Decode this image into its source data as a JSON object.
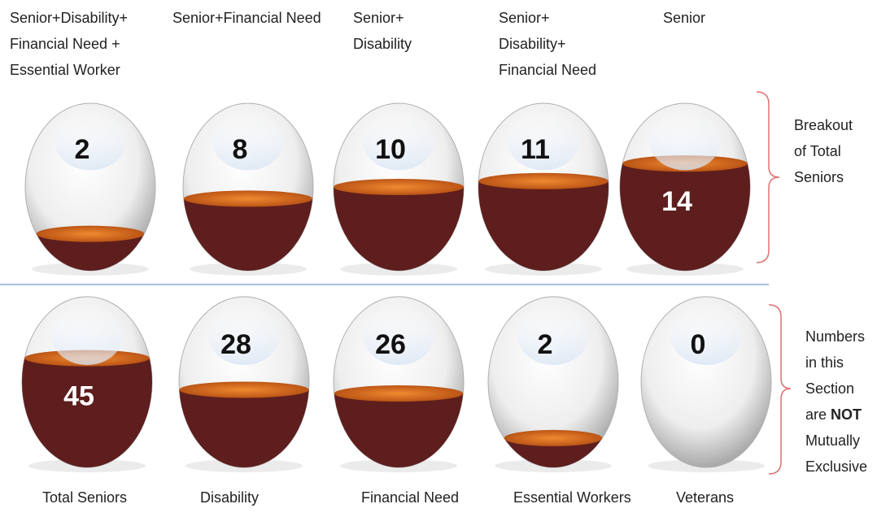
{
  "chart_data": [
    {
      "type": "egg",
      "categories": [
        [
          "Senior+Disability+",
          "Financial Need +",
          "Essential Worker"
        ],
        [
          "Senior+Financial Need"
        ],
        [
          "Senior+",
          "Disability"
        ],
        [
          "Senior+",
          "Disability+",
          "Financial Need"
        ],
        [
          "Senior"
        ]
      ],
      "values": [
        2,
        8,
        10,
        11,
        14
      ],
      "note": [
        "Breakout",
        "of Total",
        "Seniors"
      ]
    },
    {
      "type": "egg",
      "categories": [
        [
          "Total Seniors"
        ],
        [
          "Disability"
        ],
        [
          "Financial Need"
        ],
        [
          "Essential Workers"
        ],
        [
          "Veterans"
        ]
      ],
      "values": [
        45,
        28,
        26,
        2,
        0
      ],
      "note": [
        "Numbers",
        "in this",
        "Section",
        "are",
        "NOT",
        "Mutually",
        "Exclusive"
      ]
    }
  ]
}
